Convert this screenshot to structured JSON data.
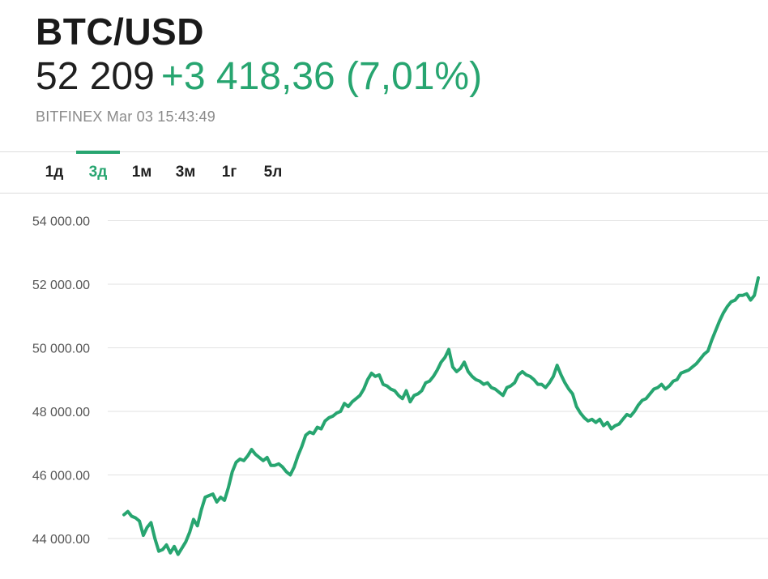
{
  "header": {
    "symbol": "BTC/USD",
    "price": "52 209",
    "change": "+3 418,36 (7,01%)",
    "source_time": "BITFINEX Mar 03 15:43:49"
  },
  "tabs": [
    {
      "label": "1д",
      "active": false
    },
    {
      "label": "3д",
      "active": true
    },
    {
      "label": "1м",
      "active": false
    },
    {
      "label": "3м",
      "active": false
    },
    {
      "label": "1г",
      "active": false
    },
    {
      "label": "5л",
      "active": false
    }
  ],
  "colors": {
    "accent": "#27a570",
    "grid": "#e2e2e2",
    "text": "#1a1a1a",
    "muted": "#8a8a8a"
  },
  "chart_data": {
    "type": "line",
    "title": "",
    "xlabel": "",
    "ylabel": "",
    "ylim": [
      43000,
      55000
    ],
    "y_ticks": [
      44000,
      46000,
      48000,
      50000,
      52000,
      54000
    ],
    "y_tick_labels": [
      "44 000.00",
      "46 000.00",
      "48 000.00",
      "50 000.00",
      "52 000.00",
      "54 000.00"
    ],
    "grid": true,
    "legend": "none",
    "series": [
      {
        "color": "#27a570",
        "values": [
          44750,
          44850,
          44700,
          44650,
          44550,
          44100,
          44350,
          44500,
          44000,
          43600,
          43650,
          43800,
          43550,
          43750,
          43500,
          43700,
          43900,
          44200,
          44600,
          44400,
          44900,
          45300,
          45350,
          45400,
          45150,
          45300,
          45200,
          45600,
          46100,
          46400,
          46500,
          46450,
          46600,
          46800,
          46650,
          46550,
          46450,
          46550,
          46300,
          46300,
          46350,
          46250,
          46100,
          46000,
          46250,
          46600,
          46900,
          47250,
          47350,
          47300,
          47500,
          47450,
          47700,
          47800,
          47850,
          47950,
          48000,
          48250,
          48150,
          48300,
          48400,
          48500,
          48700,
          49000,
          49200,
          49100,
          49150,
          48850,
          48800,
          48700,
          48650,
          48500,
          48400,
          48650,
          48300,
          48500,
          48550,
          48650,
          48900,
          48950,
          49100,
          49300,
          49550,
          49700,
          49950,
          49400,
          49250,
          49350,
          49550,
          49250,
          49100,
          49000,
          48950,
          48850,
          48900,
          48750,
          48700,
          48600,
          48500,
          48750,
          48800,
          48900,
          49150,
          49250,
          49150,
          49100,
          49000,
          48850,
          48850,
          48750,
          48900,
          49100,
          49450,
          49150,
          48900,
          48700,
          48550,
          48150,
          47950,
          47800,
          47700,
          47750,
          47650,
          47750,
          47550,
          47650,
          47450,
          47550,
          47600,
          47750,
          47900,
          47850,
          48000,
          48200,
          48350,
          48400,
          48550,
          48700,
          48750,
          48850,
          48700,
          48800,
          48950,
          49000,
          49200,
          49250,
          49300,
          49400,
          49500,
          49650,
          49800,
          49900,
          50250,
          50550,
          50850,
          51100,
          51300,
          51450,
          51500,
          51650,
          51650,
          51700,
          51500,
          51650,
          52200
        ]
      }
    ]
  }
}
